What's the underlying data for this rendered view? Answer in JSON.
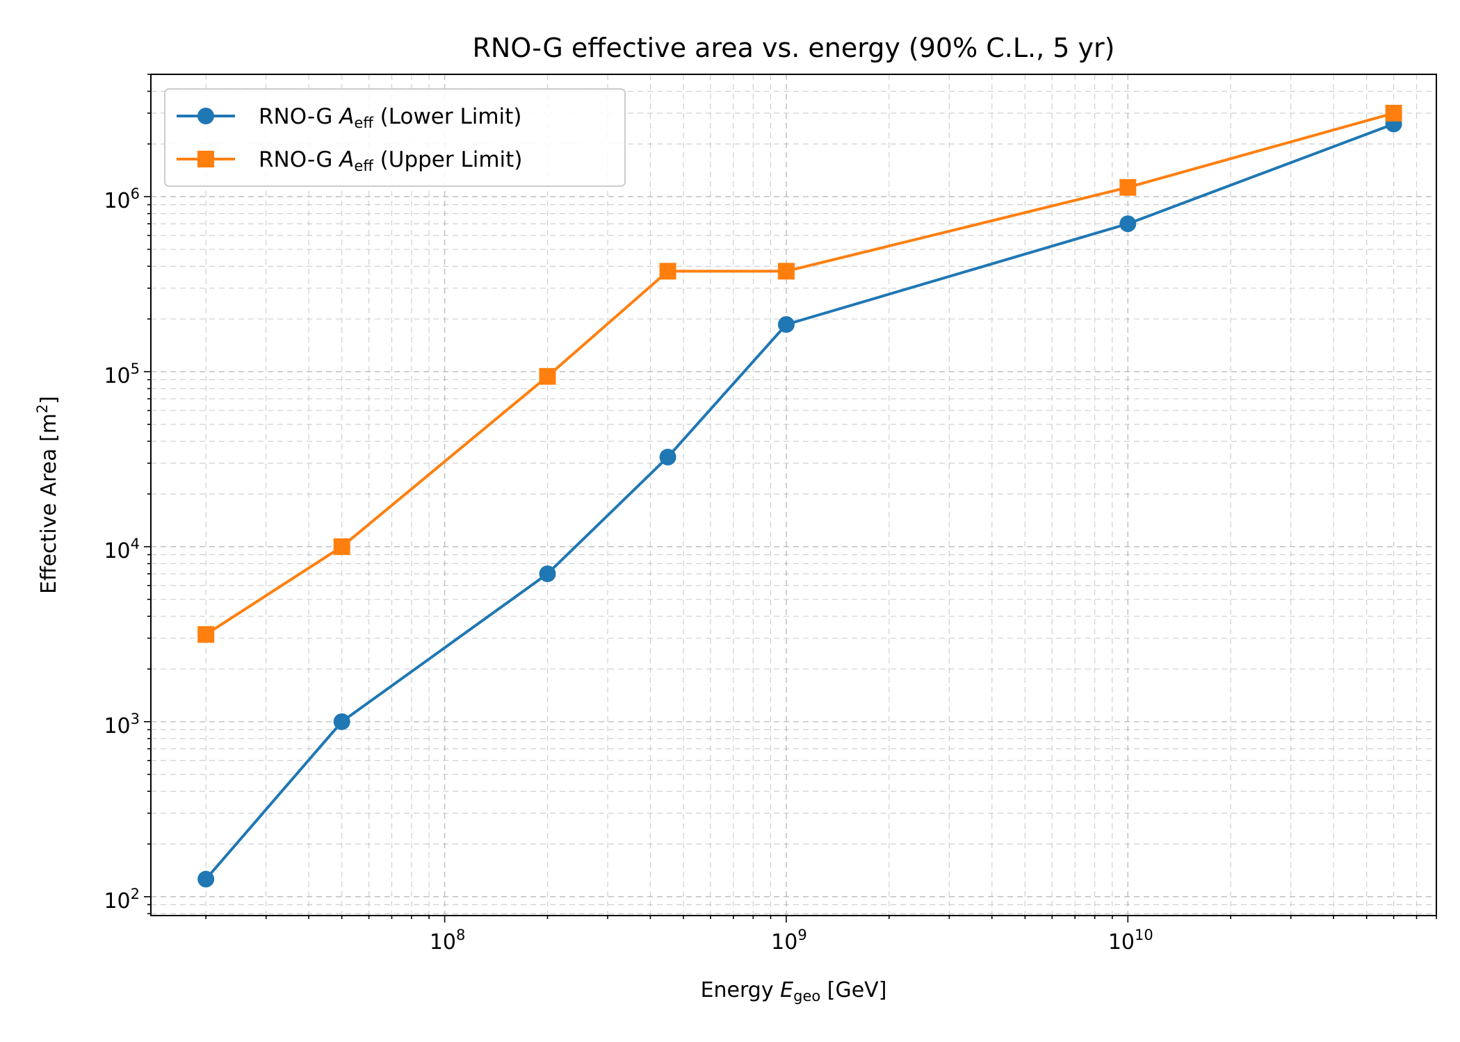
{
  "chart_data": {
    "type": "line",
    "title": "RNO-G effective area vs. energy (90% C.L., 5 yr)",
    "xlabel": {
      "prefix": "Energy ",
      "var": "E",
      "sub": "geo",
      "suffix": " [GeV]"
    },
    "ylabel": {
      "prefix": "Effective Area [m",
      "sup": "2",
      "suffix": "]"
    },
    "x_scale": "log",
    "y_scale": "log",
    "xlim": [
      13800000,
      80000000000
    ],
    "ylim": [
      78,
      5000000
    ],
    "x_ticks": [
      {
        "base": "10",
        "exp": "8",
        "value": 100000000
      },
      {
        "base": "10",
        "exp": "9",
        "value": 1000000000
      },
      {
        "base": "10",
        "exp": "10",
        "value": 10000000000
      }
    ],
    "y_ticks": [
      {
        "base": "10",
        "exp": "2",
        "value": 100
      },
      {
        "base": "10",
        "exp": "3",
        "value": 1000
      },
      {
        "base": "10",
        "exp": "4",
        "value": 10000
      },
      {
        "base": "10",
        "exp": "5",
        "value": 100000
      },
      {
        "base": "10",
        "exp": "6",
        "value": 1000000
      }
    ],
    "grid": true,
    "legend_position": "upper-left",
    "series": [
      {
        "name": {
          "prefix": "RNO-G ",
          "var": "A",
          "sub": "eff",
          "suffix": " (Lower Limit)"
        },
        "color": "#1f77b4",
        "marker": "circle",
        "x": [
          20000000,
          50000000,
          200000000,
          450000000,
          1000000000,
          10000000000,
          60000000000
        ],
        "y": [
          126,
          1000,
          7000,
          32500,
          186000,
          700000,
          2600000
        ]
      },
      {
        "name": {
          "prefix": "RNO-G ",
          "var": "A",
          "sub": "eff",
          "suffix": " (Upper Limit)"
        },
        "color": "#ff7f0e",
        "marker": "square",
        "x": [
          20000000,
          50000000,
          200000000,
          450000000,
          1000000000,
          10000000000,
          60000000000
        ],
        "y": [
          3150,
          10000,
          94000,
          375000,
          375000,
          1130000,
          3000000
        ]
      }
    ]
  }
}
